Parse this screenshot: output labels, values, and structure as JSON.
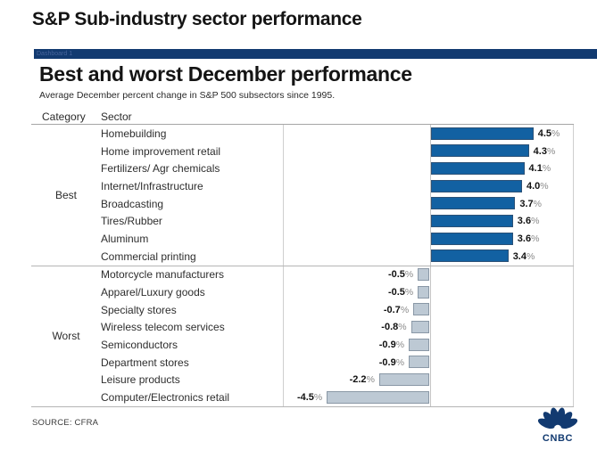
{
  "page": {
    "top_title": "S&P Sub-industry sector performance",
    "dashboard_tab": "Dashboard 1",
    "source": "SOURCE: CFRA",
    "logo_text": "CNBC"
  },
  "chart_data": {
    "type": "bar",
    "orientation": "horizontal",
    "title": "Best and worst December performance",
    "subtitle": "Average December percent change in S&P 500 subsectors since 1995.",
    "column_headers": [
      "Category",
      "Sector"
    ],
    "value_suffix": "%",
    "axis_shown": false,
    "groups": [
      {
        "category": "Best",
        "rows": [
          {
            "sector": "Homebuilding",
            "value": 4.5,
            "label": "4.5%"
          },
          {
            "sector": "Home improvement retail",
            "value": 4.3,
            "label": "4.3%"
          },
          {
            "sector": "Fertilizers/ Agr chemicals",
            "value": 4.1,
            "label": "4.1%"
          },
          {
            "sector": "Internet/Infrastructure",
            "value": 4.0,
            "label": "4.0%"
          },
          {
            "sector": "Broadcasting",
            "value": 3.7,
            "label": "3.7%"
          },
          {
            "sector": "Tires/Rubber",
            "value": 3.6,
            "label": "3.6%"
          },
          {
            "sector": "Aluminum",
            "value": 3.6,
            "label": "3.6%"
          },
          {
            "sector": "Commercial printing",
            "value": 3.4,
            "label": "3.4%"
          }
        ]
      },
      {
        "category": "Worst",
        "rows": [
          {
            "sector": "Motorcycle manufacturers",
            "value": -0.5,
            "label": "-0.5%"
          },
          {
            "sector": "Apparel/Luxury goods",
            "value": -0.5,
            "label": "-0.5%"
          },
          {
            "sector": "Specialty stores",
            "value": -0.7,
            "label": "-0.7%"
          },
          {
            "sector": "Wireless telecom services",
            "value": -0.8,
            "label": "-0.8%"
          },
          {
            "sector": "Semiconductors",
            "value": -0.9,
            "label": "-0.9%"
          },
          {
            "sector": "Department stores",
            "value": -0.9,
            "label": "-0.9%"
          },
          {
            "sector": "Leisure products",
            "value": -2.2,
            "label": "-2.2%"
          },
          {
            "sector": "Computer/Electronics retail",
            "value": -4.5,
            "label": "-4.5%"
          }
        ]
      }
    ],
    "colors": {
      "positive_bar": "#1261a2",
      "positive_border": "#2b5177",
      "negative_bar": "#bdc9d4",
      "negative_border": "#8a98a6",
      "brand_navy": "#123a70"
    }
  }
}
